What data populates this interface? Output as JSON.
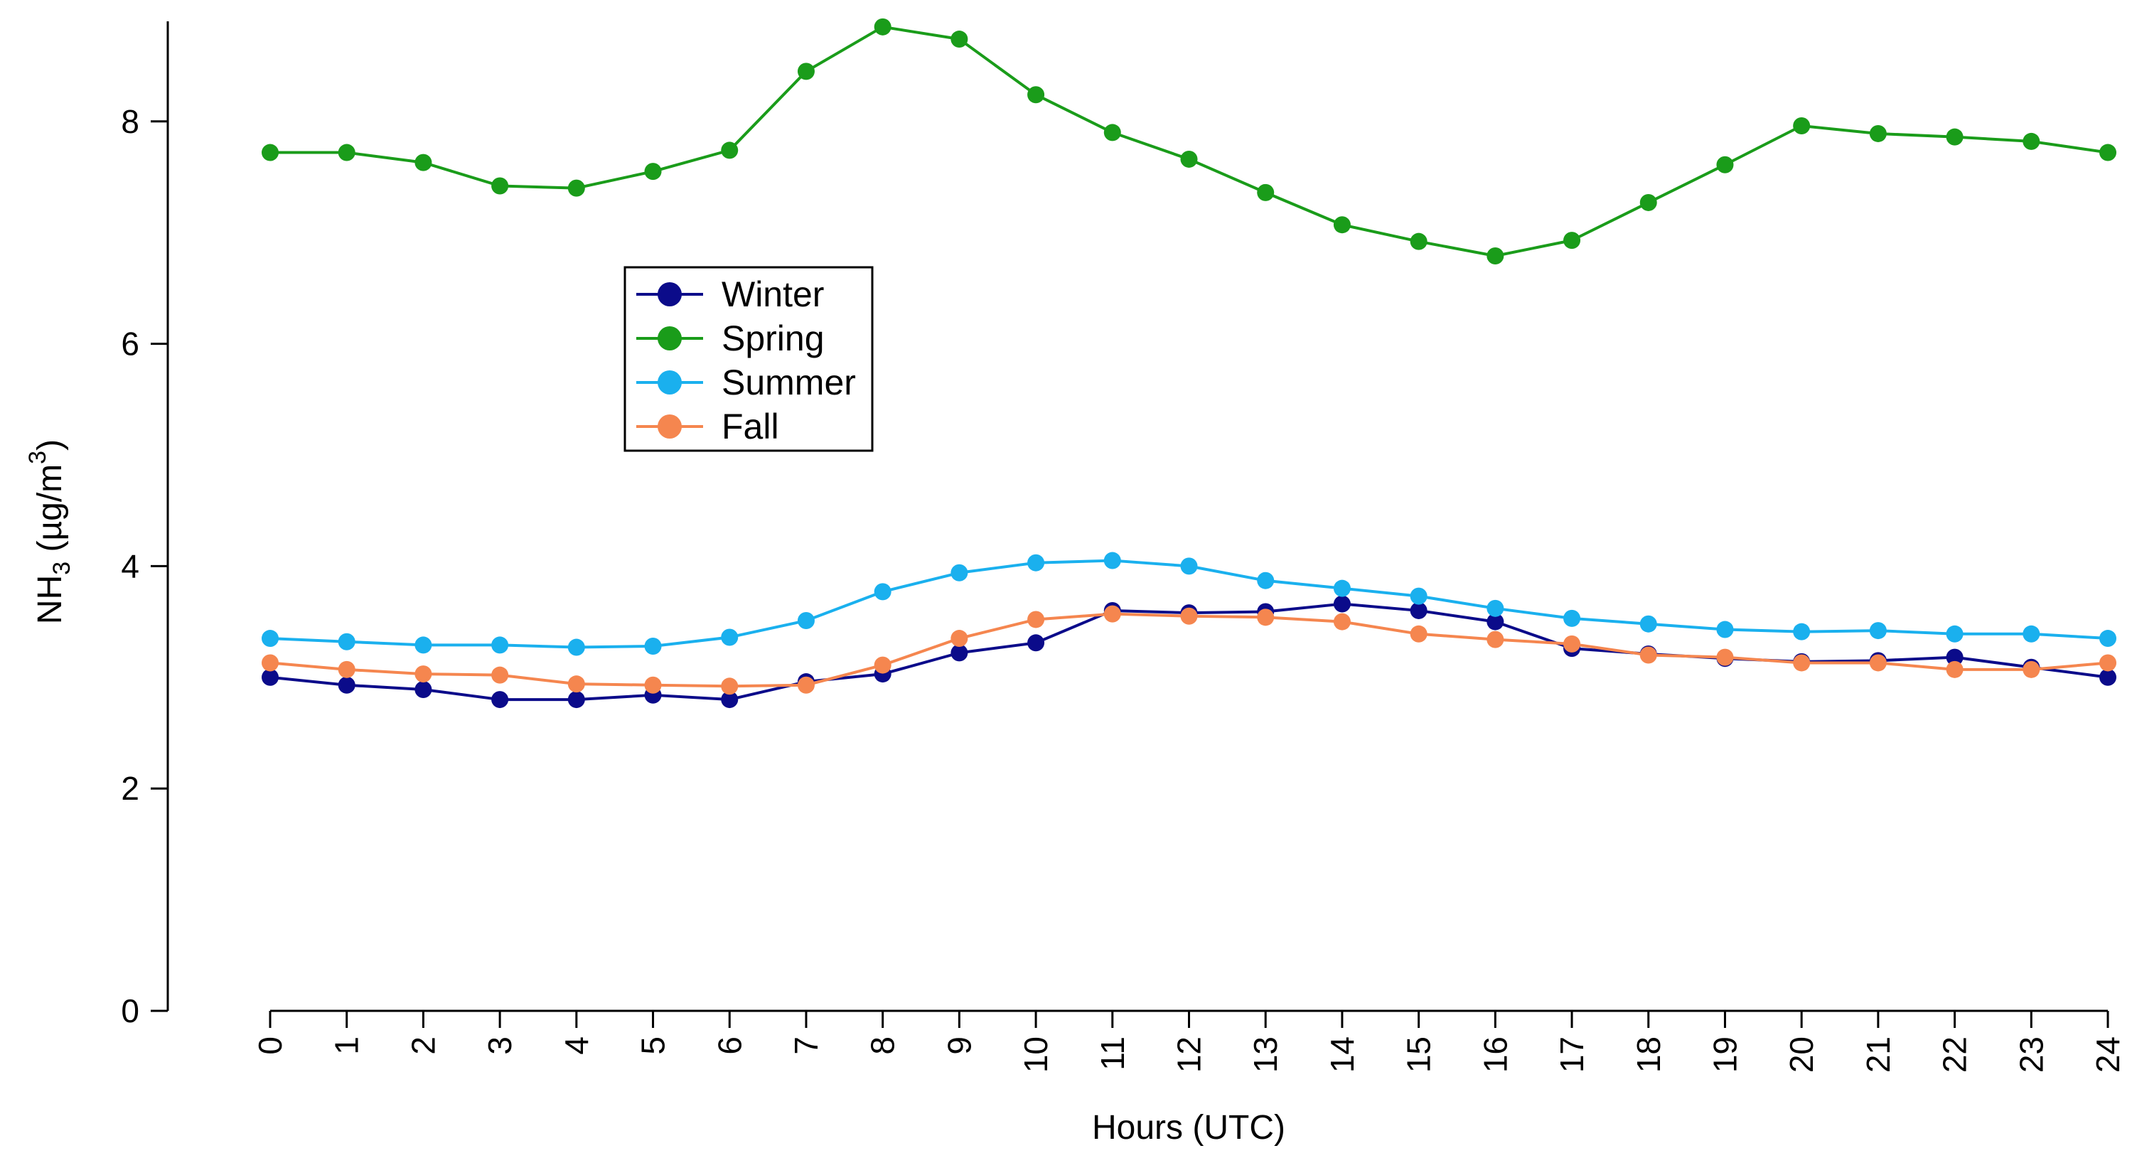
{
  "chart_data": {
    "type": "line",
    "xlabel": "Hours (UTC)",
    "ylabel": {
      "base": "NH",
      "sub": "3",
      "unit_open": " (µg/m",
      "sup": "3",
      "unit_close": ")"
    },
    "x": [
      0,
      1,
      2,
      3,
      4,
      5,
      6,
      7,
      8,
      9,
      10,
      11,
      12,
      13,
      14,
      15,
      16,
      17,
      18,
      19,
      20,
      21,
      22,
      23,
      24
    ],
    "xticks": [
      "0",
      "1",
      "2",
      "3",
      "4",
      "5",
      "6",
      "7",
      "8",
      "9",
      "10",
      "11",
      "12",
      "13",
      "14",
      "15",
      "16",
      "17",
      "18",
      "19",
      "20",
      "21",
      "22",
      "23",
      "24"
    ],
    "yticks": [
      "0",
      "2",
      "4",
      "6",
      "8"
    ],
    "xlim": [
      0,
      24
    ],
    "ylim": [
      0,
      8.9
    ],
    "grid": false,
    "legend_position": "upper-left",
    "series": [
      {
        "name": "Winter",
        "color": "#0b0b8a",
        "values": [
          3.0,
          2.93,
          2.89,
          2.8,
          2.8,
          2.84,
          2.8,
          2.96,
          3.03,
          3.22,
          3.31,
          3.6,
          3.58,
          3.59,
          3.66,
          3.6,
          3.5,
          3.26,
          3.21,
          3.17,
          3.14,
          3.15,
          3.18,
          3.09,
          3.0
        ]
      },
      {
        "name": "Spring",
        "color": "#1a9c1a",
        "values": [
          7.72,
          7.72,
          7.63,
          7.42,
          7.4,
          7.55,
          7.74,
          8.45,
          8.85,
          8.74,
          8.24,
          7.9,
          7.66,
          7.36,
          7.07,
          6.92,
          6.79,
          6.93,
          7.27,
          7.61,
          7.96,
          7.89,
          7.86,
          7.82,
          7.72
        ]
      },
      {
        "name": "Summer",
        "color": "#1ab0ee",
        "values": [
          3.35,
          3.32,
          3.29,
          3.29,
          3.27,
          3.28,
          3.36,
          3.51,
          3.77,
          3.94,
          4.03,
          4.05,
          4.0,
          3.87,
          3.8,
          3.73,
          3.62,
          3.53,
          3.48,
          3.43,
          3.41,
          3.42,
          3.39,
          3.39,
          3.35
        ]
      },
      {
        "name": "Fall",
        "color": "#f5864f",
        "values": [
          3.13,
          3.07,
          3.03,
          3.02,
          2.94,
          2.93,
          2.92,
          2.93,
          3.11,
          3.35,
          3.52,
          3.57,
          3.55,
          3.54,
          3.5,
          3.39,
          3.34,
          3.3,
          3.2,
          3.18,
          3.13,
          3.13,
          3.07,
          3.07,
          3.13
        ]
      }
    ]
  }
}
